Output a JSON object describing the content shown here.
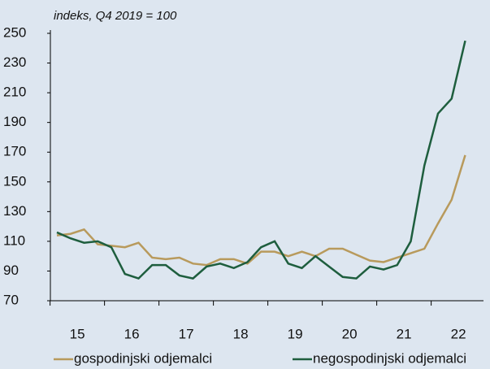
{
  "chart_data": {
    "type": "line",
    "subtitle": "indeks, Q4 2019 = 100",
    "categories": [
      null,
      "15",
      null,
      null,
      null,
      "16",
      null,
      null,
      null,
      "17",
      null,
      null,
      null,
      "18",
      null,
      null,
      null,
      "19",
      null,
      null,
      null,
      "20",
      null,
      null,
      null,
      "21",
      null,
      null,
      null,
      "22",
      null
    ],
    "series": [
      {
        "name": "gospodinjski odjemalci",
        "color": "#b89a5c",
        "values": [
          114,
          115,
          118,
          108,
          107,
          106,
          109,
          99,
          98,
          99,
          95,
          94,
          98,
          98,
          95,
          103,
          103,
          100,
          103,
          100,
          105,
          105,
          101,
          97,
          96,
          99,
          102,
          105,
          122,
          138,
          168
        ]
      },
      {
        "name": "negospodinjski odjemalci",
        "color": "#1e5e3e",
        "values": [
          116,
          112,
          109,
          110,
          106,
          88,
          85,
          94,
          94,
          87,
          85,
          93,
          95,
          92,
          96,
          106,
          110,
          95,
          92,
          100,
          93,
          86,
          85,
          93,
          91,
          94,
          110,
          161,
          196,
          206,
          245
        ]
      }
    ],
    "ylim": [
      70,
      250
    ],
    "yticks": [
      70,
      90,
      110,
      130,
      150,
      170,
      190,
      210,
      230,
      250
    ],
    "grid": false,
    "legend": "bottom"
  }
}
